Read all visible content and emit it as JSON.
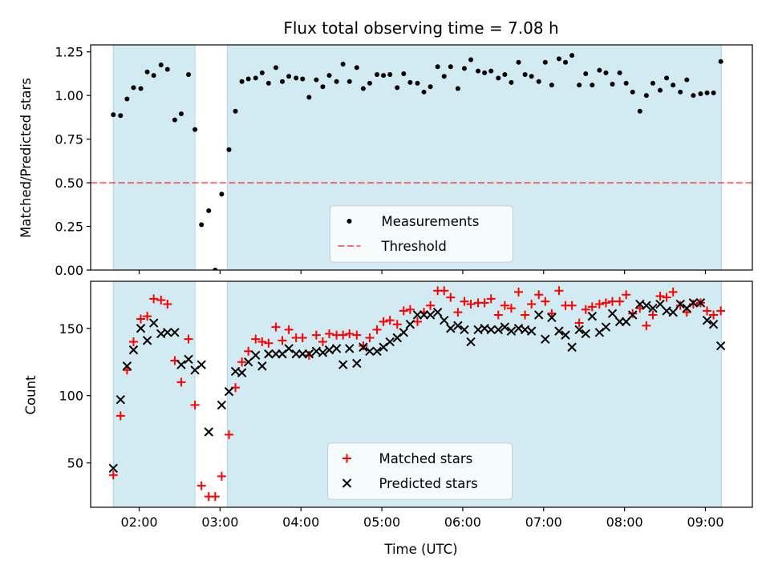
{
  "title": "Flux total observing time = 7.08 h",
  "colors": {
    "shade": "#add8e6",
    "threshold": "#ff0000",
    "measurement": "#000000",
    "matched": "#ff0000",
    "predicted": "#000000"
  },
  "chart_data": [
    {
      "type": "scatter",
      "ylabel": "Matched/Predicted stars",
      "xlabel": "",
      "xlim": [
        1.4,
        9.58
      ],
      "ylim": [
        0.0,
        1.29
      ],
      "yticks": [
        0.0,
        0.25,
        0.5,
        0.75,
        1.0,
        1.25
      ],
      "ytick_labels": [
        "0.00",
        "0.25",
        "0.50",
        "0.75",
        "1.00",
        "1.25"
      ],
      "shaded_spans": [
        [
          1.68,
          2.69
        ],
        [
          3.09,
          9.2
        ]
      ],
      "legend": {
        "placement": "lower center",
        "entries": [
          "Measurements",
          "Threshold"
        ]
      },
      "series": [
        {
          "name": "Threshold",
          "kind": "hline",
          "value": 0.5
        },
        {
          "name": "Measurements",
          "kind": "dots",
          "x": [
            1.68,
            1.77,
            1.85,
            1.93,
            2.02,
            2.1,
            2.18,
            2.27,
            2.35,
            2.44,
            2.52,
            2.61,
            2.69,
            2.77,
            2.86,
            2.94,
            3.02,
            3.11,
            3.19,
            3.27,
            3.35,
            3.44,
            3.52,
            3.6,
            3.69,
            3.77,
            3.85,
            3.94,
            4.02,
            4.1,
            4.19,
            4.27,
            4.35,
            4.44,
            4.52,
            4.6,
            4.69,
            4.77,
            4.85,
            4.94,
            5.02,
            5.1,
            5.19,
            5.27,
            5.35,
            5.44,
            5.52,
            5.6,
            5.69,
            5.77,
            5.85,
            5.94,
            6.02,
            6.1,
            6.19,
            6.27,
            6.35,
            6.44,
            6.52,
            6.6,
            6.69,
            6.77,
            6.85,
            6.94,
            7.02,
            7.1,
            7.19,
            7.27,
            7.35,
            7.44,
            7.52,
            7.6,
            7.69,
            7.77,
            7.85,
            7.94,
            8.02,
            8.1,
            8.19,
            8.27,
            8.35,
            8.44,
            8.52,
            8.6,
            8.69,
            8.77,
            8.85,
            8.94,
            9.02,
            9.1,
            9.19
          ],
          "y": [
            0.89,
            0.885,
            0.98,
            1.045,
            1.04,
            1.135,
            1.115,
            1.175,
            1.15,
            0.86,
            0.895,
            1.12,
            0.805,
            0.26,
            0.34,
            0.0,
            0.435,
            0.69,
            0.91,
            1.08,
            1.095,
            1.1,
            1.13,
            1.07,
            1.16,
            1.08,
            1.11,
            1.1,
            1.095,
            0.99,
            1.09,
            1.05,
            1.115,
            1.08,
            1.18,
            1.08,
            1.16,
            1.04,
            1.07,
            1.12,
            1.115,
            1.12,
            1.045,
            1.125,
            1.075,
            1.07,
            1.02,
            1.05,
            1.165,
            1.11,
            1.165,
            1.04,
            1.155,
            1.205,
            1.14,
            1.13,
            1.14,
            1.1,
            1.12,
            1.075,
            1.19,
            1.12,
            1.11,
            1.08,
            1.19,
            1.06,
            1.21,
            1.19,
            1.23,
            1.06,
            1.125,
            1.06,
            1.145,
            1.13,
            1.065,
            1.13,
            1.07,
            1.02,
            0.91,
            1.0,
            1.07,
            1.03,
            1.1,
            1.06,
            1.02,
            1.09,
            1.0,
            1.01,
            1.015,
            1.015,
            1.195
          ]
        }
      ]
    },
    {
      "type": "scatter",
      "ylabel": "Count",
      "xlabel": "Time (UTC)",
      "xlim": [
        1.4,
        9.58
      ],
      "ylim": [
        17,
        185
      ],
      "yticks": [
        50,
        100,
        150
      ],
      "ytick_labels": [
        "50",
        "100",
        "150"
      ],
      "xticks": [
        2,
        3,
        4,
        5,
        6,
        7,
        8,
        9
      ],
      "xtick_labels": [
        "02:00",
        "03:00",
        "04:00",
        "05:00",
        "06:00",
        "07:00",
        "08:00",
        "09:00"
      ],
      "shaded_spans": [
        [
          1.68,
          2.69
        ],
        [
          3.09,
          9.2
        ]
      ],
      "legend": {
        "placement": "lower center",
        "entries": [
          "Matched stars",
          "Predicted stars"
        ]
      },
      "series": [
        {
          "name": "Matched stars",
          "kind": "plus",
          "x": [
            1.68,
            1.77,
            1.85,
            1.93,
            2.02,
            2.1,
            2.18,
            2.27,
            2.35,
            2.44,
            2.52,
            2.61,
            2.69,
            2.77,
            2.86,
            2.94,
            3.02,
            3.11,
            3.19,
            3.27,
            3.35,
            3.44,
            3.52,
            3.6,
            3.69,
            3.77,
            3.85,
            3.94,
            4.02,
            4.1,
            4.19,
            4.27,
            4.35,
            4.44,
            4.52,
            4.6,
            4.69,
            4.77,
            4.85,
            4.94,
            5.02,
            5.1,
            5.19,
            5.27,
            5.35,
            5.44,
            5.52,
            5.6,
            5.69,
            5.77,
            5.85,
            5.94,
            6.02,
            6.1,
            6.19,
            6.27,
            6.35,
            6.44,
            6.52,
            6.6,
            6.69,
            6.77,
            6.85,
            6.94,
            7.02,
            7.1,
            7.19,
            7.27,
            7.35,
            7.44,
            7.52,
            7.6,
            7.69,
            7.77,
            7.85,
            7.94,
            8.02,
            8.1,
            8.19,
            8.27,
            8.35,
            8.44,
            8.52,
            8.6,
            8.69,
            8.77,
            8.85,
            8.94,
            9.02,
            9.1,
            9.19
          ],
          "y": [
            41,
            85,
            119,
            140,
            157,
            159,
            172,
            171,
            168,
            126,
            110,
            142,
            93,
            33,
            25,
            25,
            40,
            71,
            106,
            125,
            133,
            142,
            140,
            139,
            151,
            141,
            149,
            143,
            143,
            130,
            145,
            140,
            146,
            145,
            145,
            146,
            145,
            137,
            143,
            149,
            155,
            156,
            153,
            163,
            164,
            155,
            162,
            167,
            178,
            178,
            173,
            162,
            170,
            168,
            169,
            169,
            172,
            160,
            167,
            165,
            177,
            160,
            168,
            175,
            170,
            161,
            178,
            167,
            167,
            154,
            164,
            166,
            168,
            169,
            170,
            170,
            175,
            161,
            165,
            152,
            160,
            174,
            173,
            177,
            167,
            162,
            168,
            169,
            163,
            160,
            163
          ]
        },
        {
          "name": "Predicted stars",
          "kind": "cross",
          "x": [
            1.68,
            1.77,
            1.85,
            1.93,
            2.02,
            2.1,
            2.18,
            2.27,
            2.35,
            2.44,
            2.52,
            2.61,
            2.69,
            2.77,
            2.86,
            2.94,
            3.02,
            3.11,
            3.19,
            3.27,
            3.35,
            3.44,
            3.52,
            3.6,
            3.69,
            3.77,
            3.85,
            3.94,
            4.02,
            4.1,
            4.19,
            4.27,
            4.35,
            4.44,
            4.52,
            4.6,
            4.69,
            4.77,
            4.85,
            4.94,
            5.02,
            5.1,
            5.19,
            5.27,
            5.35,
            5.44,
            5.52,
            5.6,
            5.69,
            5.77,
            5.85,
            5.94,
            6.02,
            6.1,
            6.19,
            6.27,
            6.35,
            6.44,
            6.52,
            6.6,
            6.69,
            6.77,
            6.85,
            6.94,
            7.02,
            7.1,
            7.19,
            7.27,
            7.35,
            7.44,
            7.52,
            7.6,
            7.69,
            7.77,
            7.85,
            7.94,
            8.02,
            8.1,
            8.19,
            8.27,
            8.35,
            8.44,
            8.52,
            8.6,
            8.69,
            8.77,
            8.85,
            8.94,
            9.02,
            9.1,
            9.19
          ],
          "y": [
            46,
            97,
            122,
            134,
            150,
            141,
            154,
            146,
            147,
            147,
            123,
            127,
            119,
            123,
            73,
            null,
            93,
            103,
            118,
            117,
            125,
            130,
            122,
            131,
            131,
            131,
            135,
            131,
            131,
            131,
            133,
            132,
            134,
            135,
            123,
            135,
            124,
            136,
            133,
            133,
            136,
            140,
            143,
            147,
            153,
            160,
            160,
            160,
            162,
            156,
            150,
            152,
            149,
            140,
            149,
            150,
            149,
            149,
            151,
            148,
            150,
            149,
            148,
            160,
            142,
            158,
            148,
            145,
            136,
            149,
            146,
            159,
            147,
            151,
            161,
            155,
            155,
            160,
            168,
            167,
            165,
            168,
            163,
            162,
            168,
            165,
            169,
            169,
            156,
            153,
            137
          ]
        }
      ]
    }
  ]
}
